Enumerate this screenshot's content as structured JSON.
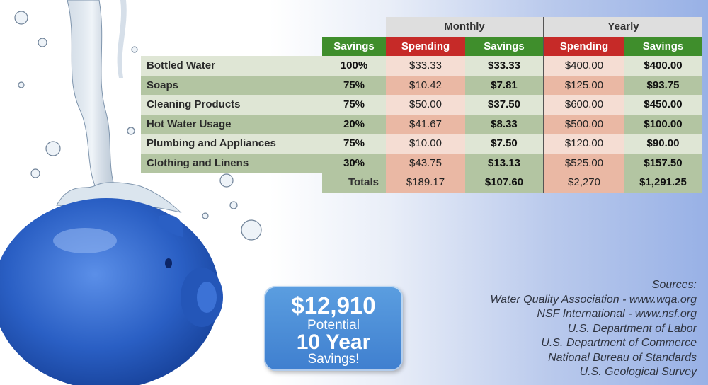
{
  "table": {
    "group_headers": {
      "monthly": "Monthly",
      "yearly": "Yearly"
    },
    "col_headers": {
      "savings_pct": "Savings",
      "monthly_spending": "Spending",
      "monthly_savings": "Savings",
      "yearly_spending": "Spending",
      "yearly_savings": "Savings"
    },
    "rows": [
      {
        "item": "Bottled Water",
        "pct": "100%",
        "m_spend": "$33.33",
        "m_save": "$33.33",
        "y_spend": "$400.00",
        "y_save": "$400.00"
      },
      {
        "item": "Soaps",
        "pct": "75%",
        "m_spend": "$10.42",
        "m_save": "$7.81",
        "y_spend": "$125.00",
        "y_save": "$93.75"
      },
      {
        "item": "Cleaning Products",
        "pct": "75%",
        "m_spend": "$50.00",
        "m_save": "$37.50",
        "y_spend": "$600.00",
        "y_save": "$450.00"
      },
      {
        "item": "Hot Water Usage",
        "pct": "20%",
        "m_spend": "$41.67",
        "m_save": "$8.33",
        "y_spend": "$500.00",
        "y_save": "$100.00"
      },
      {
        "item": "Plumbing and Appliances",
        "pct": "75%",
        "m_spend": "$10.00",
        "m_save": "$7.50",
        "y_spend": "$120.00",
        "y_save": "$90.00"
      },
      {
        "item": "Clothing and Linens",
        "pct": "30%",
        "m_spend": "$43.75",
        "m_save": "$13.13",
        "y_spend": "$525.00",
        "y_save": "$157.50"
      }
    ],
    "totals": {
      "label": "Totals",
      "m_spend": "$189.17",
      "m_save": "$107.60",
      "y_spend": "$2,270",
      "y_save": "$1,291.25"
    }
  },
  "badge": {
    "amount": "$12,910",
    "line1": "Potential",
    "line2": "10 Year",
    "line3": "Savings!"
  },
  "sources": {
    "title": "Sources:",
    "items": [
      "Water Quality Association - www.wqa.org",
      "NSF International - www.nsf.org",
      "U.S. Department of Labor",
      "U.S. Department of Commerce",
      "National Bureau of Standards",
      "U.S. Geological Survey"
    ]
  },
  "colors": {
    "savings_green": "#3f8e2c",
    "spending_red": "#c62a28",
    "badge_blue": "#4a8cd8",
    "pig_blue": "#2a5fc4"
  }
}
